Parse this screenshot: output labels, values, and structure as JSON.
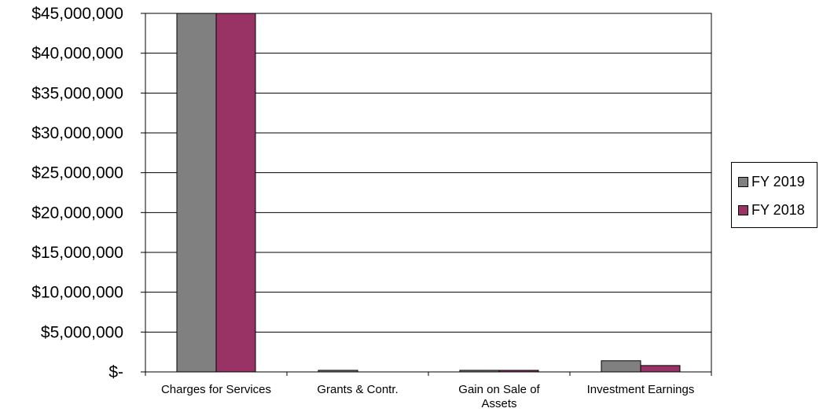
{
  "chart_data": {
    "type": "bar",
    "categories": [
      "Charges for Services",
      "Grants & Contr.",
      "Gain on Sale of Assets",
      "Investment Earnings"
    ],
    "series": [
      {
        "name": "FY 2019",
        "values": [
          45000000,
          100000,
          100000,
          1400000
        ],
        "color": "#808080"
      },
      {
        "name": "FY 2018",
        "values": [
          45000000,
          0,
          100000,
          800000
        ],
        "color": "#993366"
      }
    ],
    "ylim": [
      0,
      45000000
    ],
    "yticks": [
      "$-",
      "$5,000,000",
      "$10,000,000",
      "$15,000,000",
      "$20,000,000",
      "$25,000,000",
      "$30,000,000",
      "$35,000,000",
      "$40,000,000",
      "$45,000,000"
    ],
    "grid": true,
    "legend_position": "right"
  }
}
